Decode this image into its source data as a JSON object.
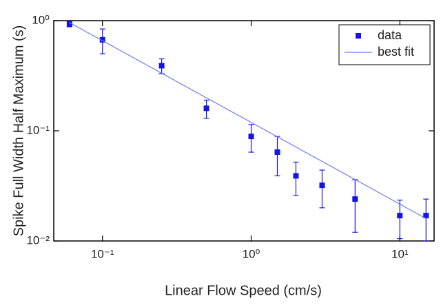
{
  "chart_data": {
    "type": "scatter",
    "xlabel": "Linear Flow Speed (cm/s)",
    "ylabel": "Spike Full Width Half Maximum (s)",
    "xscale": "log",
    "yscale": "log",
    "xlim": [
      0.047,
      17
    ],
    "ylim": [
      0.01,
      1
    ],
    "xticks": [
      {
        "value": 0.1,
        "label": "10⁻¹"
      },
      {
        "value": 1,
        "label": "10⁰"
      },
      {
        "value": 10,
        "label": "10¹"
      }
    ],
    "yticks": [
      {
        "value": 0.01,
        "label": "10⁻²"
      },
      {
        "value": 0.1,
        "label": "10⁻¹"
      },
      {
        "value": 1,
        "label": "10⁰"
      }
    ],
    "legend": "upper right",
    "series": [
      {
        "name": "data",
        "type": "scatter",
        "color": "#1414e6",
        "x": [
          0.06,
          0.1,
          0.25,
          0.5,
          1,
          1.5,
          2,
          3,
          5,
          10,
          15
        ],
        "values": [
          0.93,
          0.67,
          0.39,
          0.16,
          0.089,
          0.064,
          0.039,
          0.032,
          0.024,
          0.017,
          0.017
        ],
        "errors": [
          0.05,
          0.17,
          0.06,
          0.03,
          0.025,
          0.025,
          0.013,
          0.012,
          0.012,
          0.0065,
          0.007
        ]
      },
      {
        "name": "best fit",
        "type": "line",
        "color": "#6b7cf0",
        "x": [
          0.06,
          15
        ],
        "values": [
          0.96,
          0.016
        ]
      }
    ]
  }
}
